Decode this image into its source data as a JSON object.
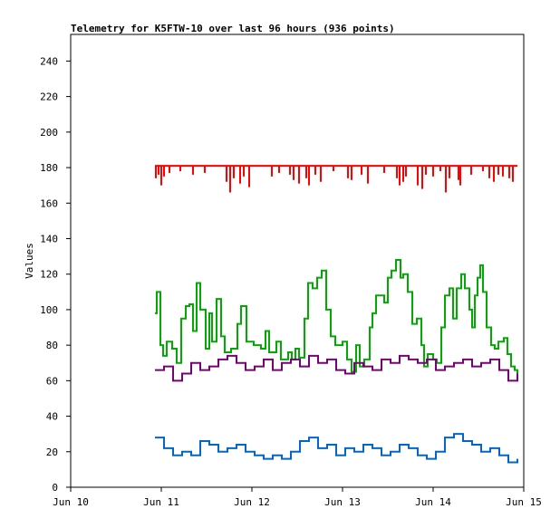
{
  "chart_data": {
    "type": "line",
    "title": "Telemetry for K5FTW-10 over last 96 hours (936 points)",
    "xlabel": "",
    "ylabel": "Values",
    "xlim": [
      10,
      15
    ],
    "ylim": [
      0,
      255
    ],
    "x_unit": "day of June",
    "xticks": [
      {
        "v": 10,
        "label": "Jun 10"
      },
      {
        "v": 11,
        "label": "Jun 11"
      },
      {
        "v": 12,
        "label": "Jun 12"
      },
      {
        "v": 13,
        "label": "Jun 13"
      },
      {
        "v": 14,
        "label": "Jun 14"
      },
      {
        "v": 15,
        "label": "Jun 15"
      }
    ],
    "yticks": [
      0,
      20,
      40,
      60,
      80,
      100,
      120,
      140,
      160,
      180,
      200,
      220,
      240
    ],
    "grid": false,
    "series": [
      {
        "name": "red",
        "color": "#ff0000",
        "baseline": 181,
        "dips": [
          [
            10.94,
            174
          ],
          [
            10.97,
            176
          ],
          [
            11.0,
            170
          ],
          [
            11.03,
            175
          ],
          [
            11.09,
            177
          ],
          [
            11.21,
            178
          ],
          [
            11.35,
            176
          ],
          [
            11.48,
            177
          ],
          [
            11.72,
            172
          ],
          [
            11.76,
            166
          ],
          [
            11.8,
            174
          ],
          [
            11.87,
            171
          ],
          [
            11.91,
            175
          ],
          [
            11.97,
            169
          ],
          [
            12.22,
            175
          ],
          [
            12.3,
            177
          ],
          [
            12.42,
            176
          ],
          [
            12.46,
            173
          ],
          [
            12.52,
            171
          ],
          [
            12.6,
            174
          ],
          [
            12.63,
            170
          ],
          [
            12.7,
            176
          ],
          [
            12.76,
            172
          ],
          [
            12.9,
            178
          ],
          [
            13.06,
            174
          ],
          [
            13.1,
            173
          ],
          [
            13.21,
            176
          ],
          [
            13.28,
            171
          ],
          [
            13.46,
            177
          ],
          [
            13.6,
            174
          ],
          [
            13.63,
            170
          ],
          [
            13.67,
            172
          ],
          [
            13.7,
            175
          ],
          [
            13.83,
            170
          ],
          [
            13.88,
            168
          ],
          [
            13.92,
            176
          ],
          [
            14.0,
            175
          ],
          [
            14.08,
            178
          ],
          [
            14.14,
            166
          ],
          [
            14.18,
            174
          ],
          [
            14.28,
            173
          ],
          [
            14.3,
            170
          ],
          [
            14.42,
            176
          ],
          [
            14.55,
            178
          ],
          [
            14.62,
            174
          ],
          [
            14.67,
            172
          ],
          [
            14.72,
            176
          ],
          [
            14.77,
            175
          ],
          [
            14.84,
            174
          ],
          [
            14.88,
            172
          ]
        ]
      },
      {
        "name": "green",
        "color": "#00aa00",
        "x": [
          10.93,
          10.95,
          10.99,
          11.02,
          11.06,
          11.12,
          11.17,
          11.22,
          11.27,
          11.31,
          11.35,
          11.39,
          11.43,
          11.49,
          11.53,
          11.56,
          11.61,
          11.66,
          11.7,
          11.77,
          11.84,
          11.88,
          11.94,
          12.02,
          12.1,
          12.15,
          12.19,
          12.27,
          12.32,
          12.4,
          12.44,
          12.48,
          12.52,
          12.58,
          12.62,
          12.67,
          12.72,
          12.77,
          12.82,
          12.87,
          12.92,
          13.0,
          13.05,
          13.1,
          13.15,
          13.19,
          13.24,
          13.3,
          13.33,
          13.37,
          13.42,
          13.46,
          13.5,
          13.54,
          13.59,
          13.64,
          13.67,
          13.72,
          13.77,
          13.82,
          13.87,
          13.9,
          13.94,
          14.0,
          14.04,
          14.09,
          14.13,
          14.18,
          14.22,
          14.26,
          14.31,
          14.35,
          14.4,
          14.43,
          14.46,
          14.49,
          14.52,
          14.55,
          14.59,
          14.64,
          14.68,
          14.72,
          14.78,
          14.82,
          14.86,
          14.9,
          14.93
        ],
        "y": [
          98,
          110,
          80,
          74,
          82,
          78,
          70,
          95,
          102,
          103,
          88,
          115,
          100,
          78,
          98,
          82,
          106,
          85,
          76,
          78,
          92,
          102,
          82,
          80,
          78,
          88,
          76,
          82,
          72,
          76,
          72,
          78,
          73,
          95,
          115,
          112,
          118,
          122,
          100,
          85,
          80,
          82,
          72,
          65,
          80,
          68,
          72,
          90,
          98,
          108,
          108,
          104,
          118,
          122,
          128,
          118,
          120,
          110,
          92,
          95,
          80,
          68,
          75,
          72,
          70,
          90,
          108,
          112,
          95,
          112,
          120,
          112,
          100,
          90,
          108,
          118,
          125,
          110,
          90,
          80,
          78,
          82,
          84,
          75,
          68,
          66,
          62
        ]
      },
      {
        "name": "purple",
        "color": "#7a007a",
        "x_start": 10.93,
        "x_step": 0.1,
        "y": [
          66,
          68,
          60,
          64,
          70,
          66,
          68,
          72,
          74,
          70,
          66,
          68,
          72,
          66,
          70,
          72,
          68,
          74,
          70,
          72,
          66,
          64,
          70,
          68,
          66,
          72,
          70,
          74,
          72,
          70,
          72,
          66,
          68,
          70,
          72,
          68,
          70,
          72,
          66,
          60,
          64
        ]
      },
      {
        "name": "blue",
        "color": "#0066cc",
        "x_start": 10.93,
        "x_step": 0.1,
        "y": [
          28,
          22,
          18,
          20,
          18,
          26,
          24,
          20,
          22,
          24,
          20,
          18,
          16,
          18,
          16,
          20,
          26,
          28,
          22,
          24,
          18,
          22,
          20,
          24,
          22,
          18,
          20,
          24,
          22,
          18,
          16,
          20,
          28,
          30,
          26,
          24,
          20,
          22,
          18,
          14,
          16
        ]
      }
    ]
  }
}
